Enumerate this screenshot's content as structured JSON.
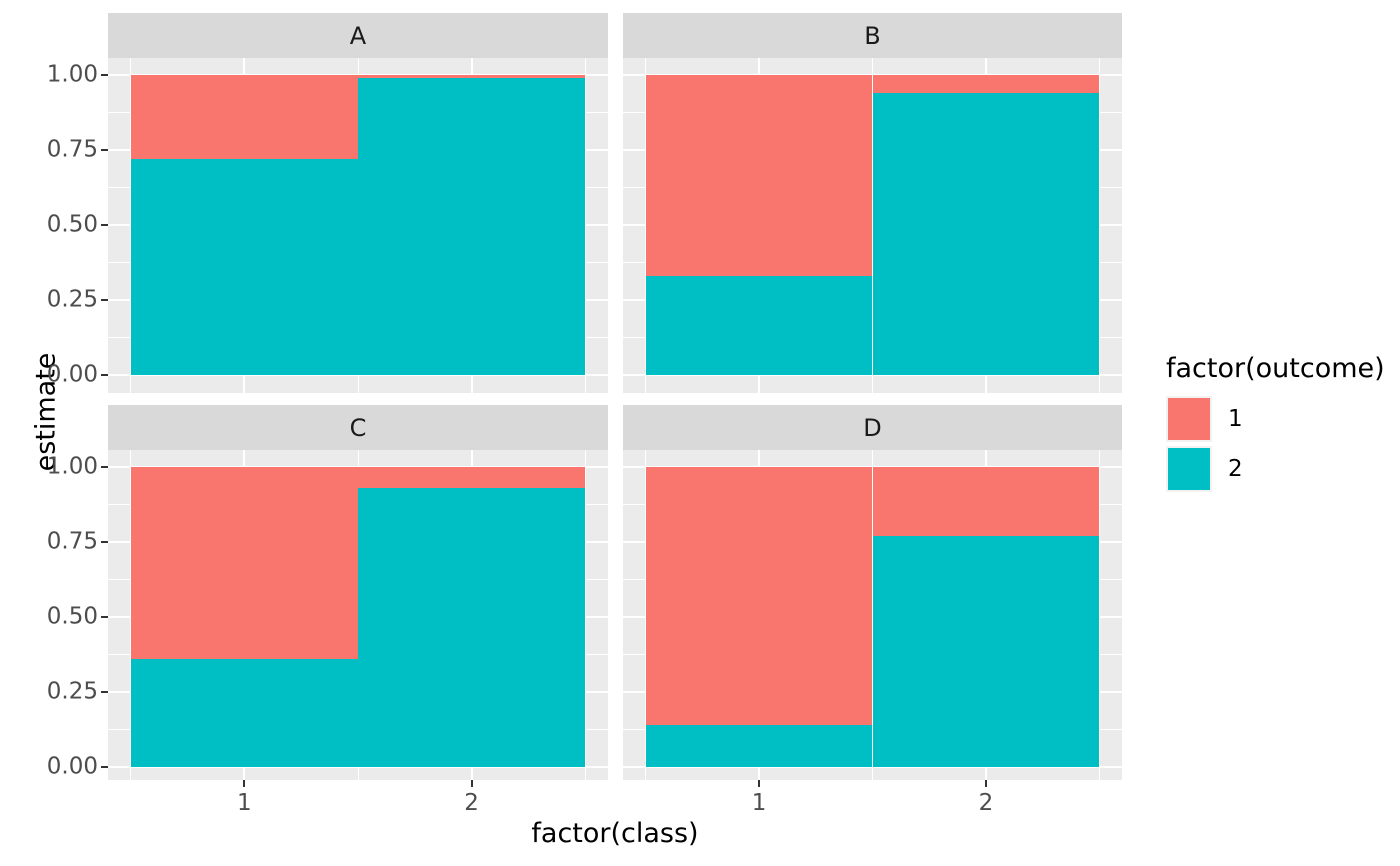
{
  "chart_data": {
    "type": "bar",
    "variant": "stacked-filled-faceted",
    "xlabel": "factor(class)",
    "ylabel": "estimate",
    "ylim": [
      0,
      1
    ],
    "grid": "on",
    "categories": [
      "1",
      "2"
    ],
    "y_ticks": [
      {
        "label": "1.00",
        "value": 1.0
      },
      {
        "label": "0.75",
        "value": 0.75
      },
      {
        "label": "0.50",
        "value": 0.5
      },
      {
        "label": "0.25",
        "value": 0.25
      },
      {
        "label": "0.00",
        "value": 0.0
      }
    ],
    "y_minor_ticks": [
      0.125,
      0.375,
      0.625,
      0.875
    ],
    "x_ticks": [
      {
        "label": "1",
        "pos": 0
      },
      {
        "label": "2",
        "pos": 1
      }
    ],
    "colors": {
      "1": "#F8766D",
      "2": "#00BFC4"
    },
    "facets": [
      {
        "label": "A",
        "bars": [
          {
            "class": "1",
            "segments": [
              {
                "outcome": "2",
                "start": 0.0,
                "end": 0.72
              },
              {
                "outcome": "1",
                "start": 0.72,
                "end": 1.0
              }
            ]
          },
          {
            "class": "2",
            "segments": [
              {
                "outcome": "2",
                "start": 0.0,
                "end": 0.99
              },
              {
                "outcome": "1",
                "start": 0.99,
                "end": 1.0
              }
            ]
          }
        ]
      },
      {
        "label": "B",
        "bars": [
          {
            "class": "1",
            "segments": [
              {
                "outcome": "2",
                "start": 0.0,
                "end": 0.33
              },
              {
                "outcome": "1",
                "start": 0.33,
                "end": 1.0
              }
            ]
          },
          {
            "class": "2",
            "segments": [
              {
                "outcome": "2",
                "start": 0.0,
                "end": 0.94
              },
              {
                "outcome": "1",
                "start": 0.94,
                "end": 1.0
              }
            ]
          }
        ]
      },
      {
        "label": "C",
        "bars": [
          {
            "class": "1",
            "segments": [
              {
                "outcome": "2",
                "start": 0.0,
                "end": 0.36
              },
              {
                "outcome": "1",
                "start": 0.36,
                "end": 1.0
              }
            ]
          },
          {
            "class": "2",
            "segments": [
              {
                "outcome": "2",
                "start": 0.0,
                "end": 0.93
              },
              {
                "outcome": "1",
                "start": 0.93,
                "end": 1.0
              }
            ]
          }
        ]
      },
      {
        "label": "D",
        "bars": [
          {
            "class": "1",
            "segments": [
              {
                "outcome": "2",
                "start": 0.0,
                "end": 0.14
              },
              {
                "outcome": "1",
                "start": 0.14,
                "end": 1.0
              }
            ]
          },
          {
            "class": "2",
            "segments": [
              {
                "outcome": "2",
                "start": 0.0,
                "end": 0.77
              },
              {
                "outcome": "1",
                "start": 0.77,
                "end": 1.0
              }
            ]
          }
        ]
      }
    ],
    "theme": {
      "panel_background": "#EBEBEB",
      "strip_background": "#D9D9D9",
      "grid_color": "#FFFFFF",
      "axis_text_color": "#4D4D4D",
      "title_color": "#000000"
    }
  },
  "legend": {
    "title": "factor(outcome)",
    "items": [
      {
        "label": "1",
        "color": "#F8766D"
      },
      {
        "label": "2",
        "color": "#00BFC4"
      }
    ]
  }
}
